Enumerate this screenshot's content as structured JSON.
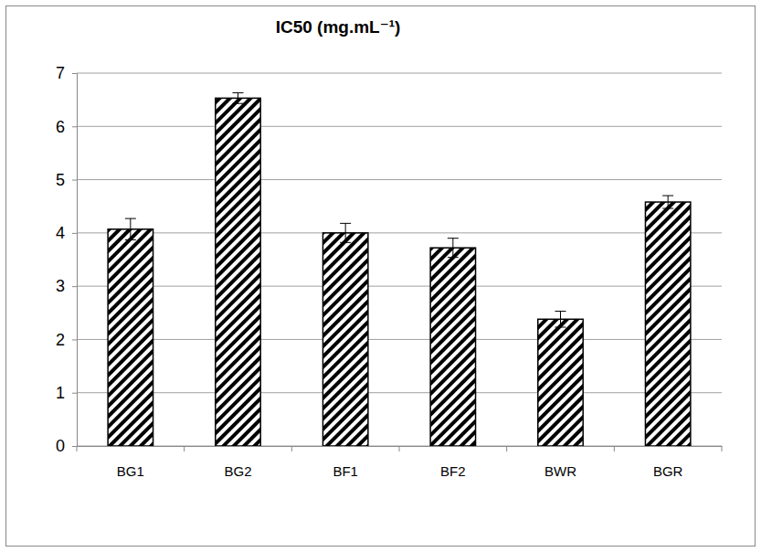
{
  "chart_data": {
    "type": "bar",
    "title": "IC50 (mg.mL⁻¹)",
    "categories": [
      "BG1",
      "BG2",
      "BF1",
      "BF2",
      "BWR",
      "BGR"
    ],
    "values": [
      4.07,
      6.53,
      4.0,
      3.72,
      2.38,
      4.58
    ],
    "errors": [
      0.2,
      0.1,
      0.18,
      0.18,
      0.15,
      0.12
    ],
    "color": "#000000",
    "ylim": [
      0,
      7
    ],
    "yticks": [
      0,
      1,
      2,
      3,
      4,
      5,
      6,
      7
    ],
    "grid": true
  }
}
